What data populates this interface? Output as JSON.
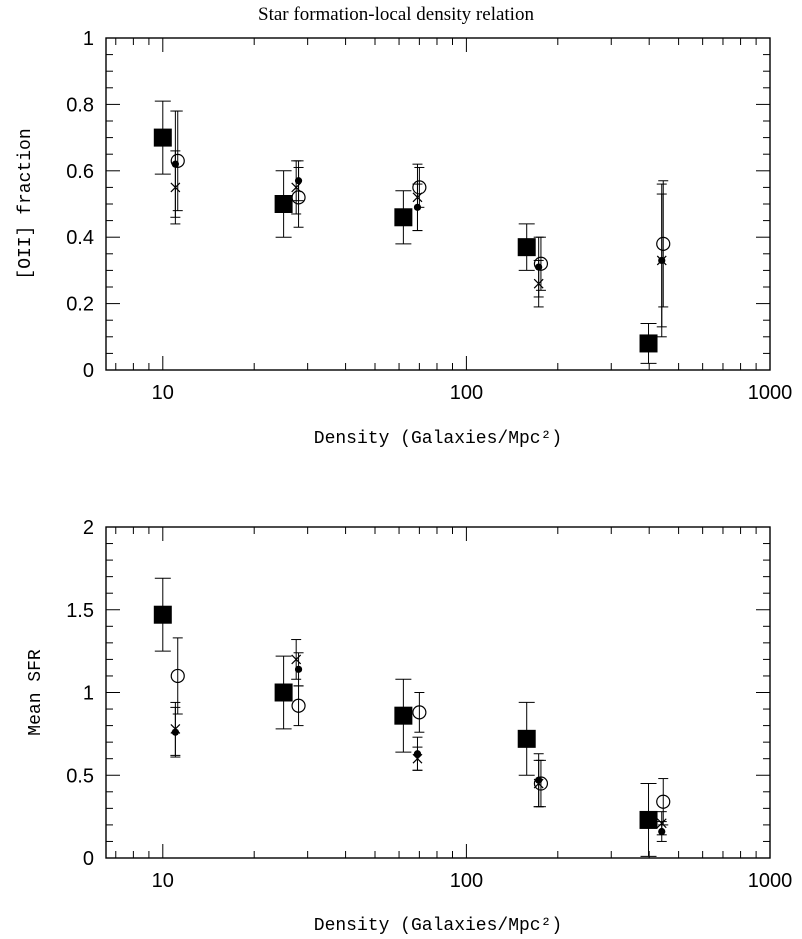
{
  "title": "Star formation-local density relation",
  "chart_data": [
    {
      "type": "scatter",
      "xscale": "log",
      "xlim": [
        6.5,
        1000
      ],
      "ylim": [
        0,
        1
      ],
      "xlabel": "Density (Galaxies/Mpc²)",
      "ylabel": "[OII] fraction",
      "x_tick_labels": [
        "10",
        "100",
        "1000"
      ],
      "x_tick_values": [
        10,
        100,
        1000
      ],
      "y_tick_labels": [
        "0",
        "0.2",
        "0.4",
        "0.6",
        "0.8",
        "1"
      ],
      "y_tick_values": [
        0,
        0.2,
        0.4,
        0.6,
        0.8,
        1
      ],
      "series": [
        {
          "marker": "filled-square",
          "x": [
            10,
            25,
            62,
            158,
            398
          ],
          "y": [
            0.7,
            0.5,
            0.46,
            0.37,
            0.08
          ],
          "err": [
            0.11,
            0.1,
            0.08,
            0.07,
            0.06
          ]
        },
        {
          "marker": "open-circle",
          "x": [
            11.2,
            28,
            70,
            176,
            445
          ],
          "y": [
            0.63,
            0.52,
            0.55,
            0.32,
            0.38
          ],
          "err": [
            0.15,
            0.09,
            0.06,
            0.08,
            0.19
          ]
        },
        {
          "marker": "cross",
          "x": [
            11,
            27.5,
            69,
            173,
            440
          ],
          "y": [
            0.55,
            0.55,
            0.52,
            0.26,
            0.33
          ],
          "err": [
            0.11,
            0.08,
            0.1,
            0.07,
            0.2
          ]
        },
        {
          "marker": "filled-dot",
          "x": [
            11,
            28,
            69,
            173,
            440
          ],
          "y": [
            0.62,
            0.57,
            0.49,
            0.31,
            0.33
          ],
          "err": [
            0.16,
            0.06,
            0.07,
            0.09,
            0.23
          ]
        }
      ]
    },
    {
      "type": "scatter",
      "xscale": "log",
      "xlim": [
        6.5,
        1000
      ],
      "ylim": [
        0,
        2
      ],
      "xlabel": "Density (Galaxies/Mpc²)",
      "ylabel": "Mean SFR",
      "x_tick_labels": [
        "10",
        "100",
        "1000"
      ],
      "x_tick_values": [
        10,
        100,
        1000
      ],
      "y_tick_labels": [
        "0",
        "0.5",
        "1",
        "1.5",
        "2"
      ],
      "y_tick_values": [
        0,
        0.5,
        1,
        1.5,
        2
      ],
      "series": [
        {
          "marker": "filled-square",
          "x": [
            10,
            25,
            62,
            158,
            398
          ],
          "y": [
            1.47,
            1.0,
            0.86,
            0.72,
            0.23
          ],
          "err": [
            0.22,
            0.22,
            0.22,
            0.22,
            0.22
          ]
        },
        {
          "marker": "open-circle",
          "x": [
            11.2,
            28,
            70,
            176,
            445
          ],
          "y": [
            1.1,
            0.92,
            0.88,
            0.45,
            0.34
          ],
          "err": [
            0.23,
            0.12,
            0.12,
            0.14,
            0.14
          ]
        },
        {
          "marker": "cross",
          "x": [
            11,
            27.5,
            69,
            173,
            440
          ],
          "y": [
            0.78,
            1.2,
            0.6,
            0.45,
            0.21
          ],
          "err": [
            0.16,
            0.12,
            0.07,
            0.14,
            0.07
          ]
        },
        {
          "marker": "filled-dot",
          "x": [
            11,
            28,
            69,
            173,
            440
          ],
          "y": [
            0.76,
            1.14,
            0.63,
            0.47,
            0.16
          ],
          "err": [
            0.15,
            0.1,
            0.1,
            0.16,
            0.06
          ]
        }
      ]
    }
  ]
}
